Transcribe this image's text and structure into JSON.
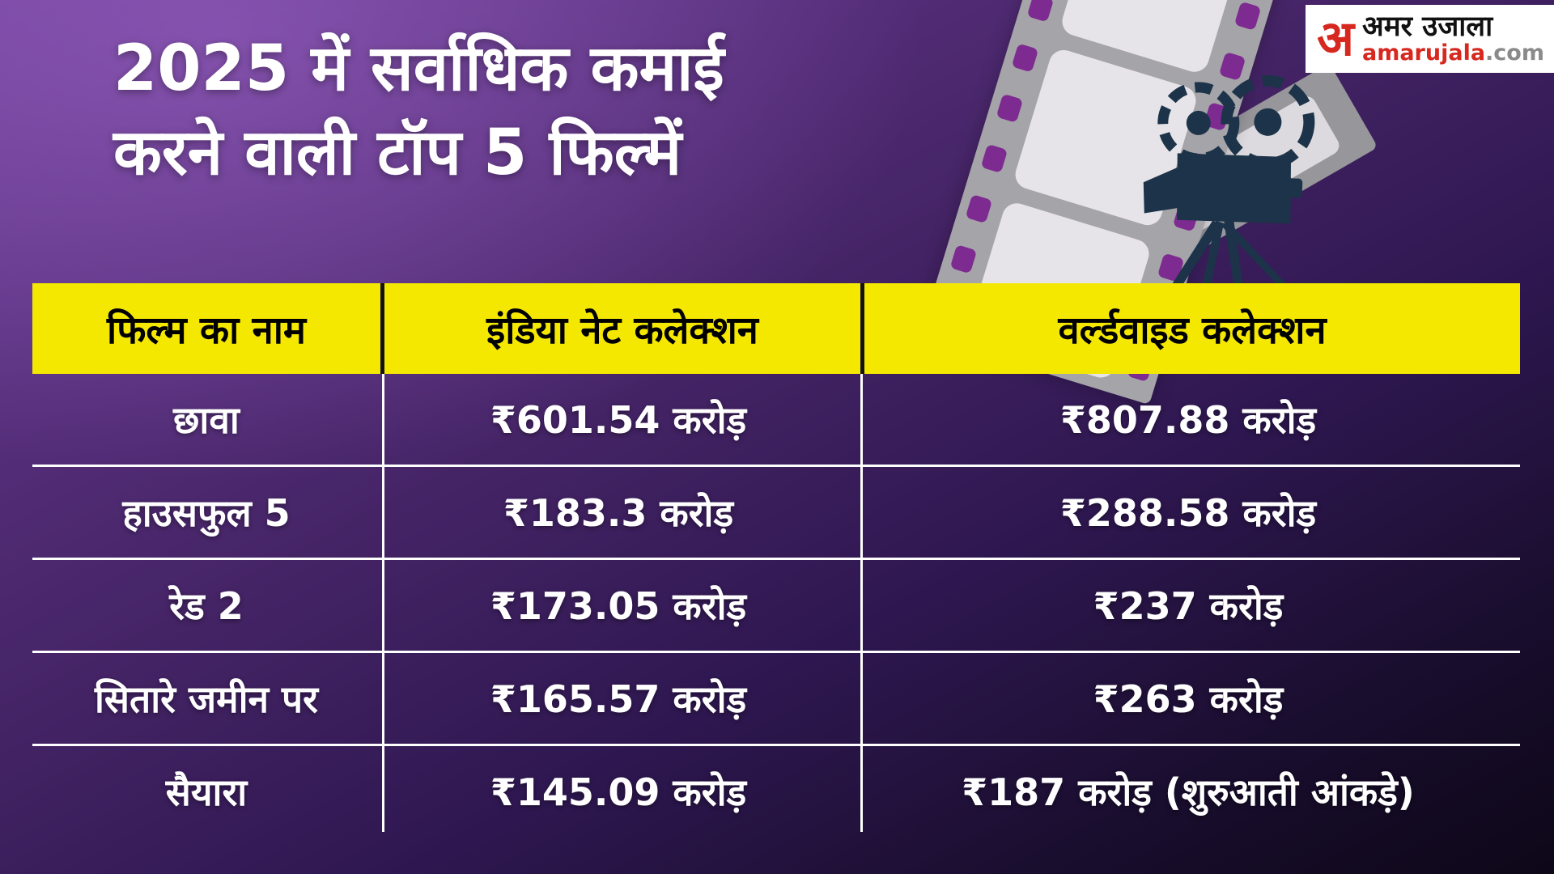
{
  "title": {
    "line1": "2025 में सर्वाधिक कमाई",
    "line2": "करने वाली टॉप 5 फिल्में"
  },
  "logo": {
    "mark": "अ",
    "name_hindi": "अमर उजाला",
    "url_main": "amarujala",
    "url_tld": ".com"
  },
  "table": {
    "headers": [
      "फिल्म का नाम",
      "इंडिया नेट कलेक्शन",
      "वर्ल्डवाइड कलेक्शन"
    ],
    "rows": [
      {
        "film": "छावा",
        "india_net": "₹601.54 करोड़",
        "worldwide": "₹807.88 करोड़"
      },
      {
        "film": "हाउसफुल 5",
        "india_net": "₹183.3 करोड़",
        "worldwide": "₹288.58 करोड़"
      },
      {
        "film": "रेड 2",
        "india_net": "₹173.05 करोड़",
        "worldwide": "₹237 करोड़"
      },
      {
        "film": "सितारे जमीन पर",
        "india_net": "₹165.57 करोड़",
        "worldwide": "₹263 करोड़"
      },
      {
        "film": "सैयारा",
        "india_net": "₹145.09 करोड़",
        "worldwide": "₹187 करोड़ (शुरुआती आंकड़े)"
      }
    ]
  },
  "chart_data": {
    "type": "table",
    "title": "2025 में सर्वाधिक कमाई करने वाली टॉप 5 फिल्में",
    "columns": [
      "फिल्म का नाम",
      "इंडिया नेट कलेक्शन",
      "वर्ल्डवाइड कलेक्शन"
    ],
    "rows": [
      [
        "छावा",
        "₹601.54 करोड़",
        "₹807.88 करोड़"
      ],
      [
        "हाउसफुल 5",
        "₹183.3 करोड़",
        "₹288.58 करोड़"
      ],
      [
        "रेड 2",
        "₹173.05 करोड़",
        "₹237 करोड़"
      ],
      [
        "सितारे जमीन पर",
        "₹165.57 करोड़",
        "₹263 करोड़"
      ],
      [
        "सैयारा",
        "₹145.09 करोड़",
        "₹187 करोड़ (शुरुआती आंकड़े)"
      ]
    ],
    "india_net_crore": [
      601.54,
      183.3,
      173.05,
      165.57,
      145.09
    ],
    "worldwide_crore": [
      807.88,
      288.58,
      237,
      263,
      187
    ],
    "note": "सैयारा worldwide figure marked as शुरुआती आंकड़े (initial figures)"
  },
  "colors": {
    "header_yellow": "#f5e800",
    "header_text": "#000000",
    "body_text": "#ffffff",
    "background_purple": "#452466",
    "logo_red": "#d7281f",
    "camera_navy": "#1c3349",
    "strip_gray": "#a5a4a8",
    "frame_gray": "#e6e4e8",
    "sprocket_purple": "#7e2b91"
  }
}
